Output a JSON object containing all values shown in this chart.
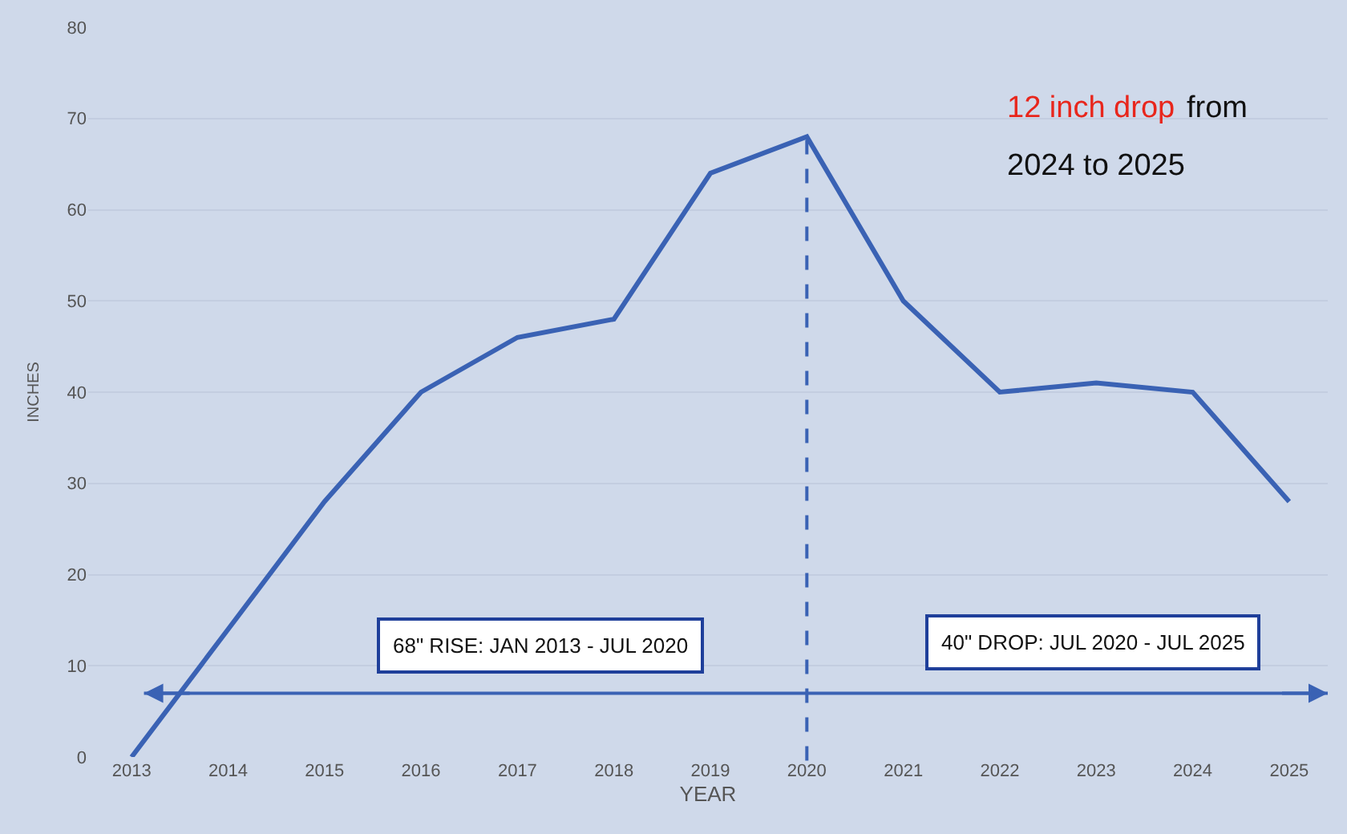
{
  "chart_data": {
    "type": "line",
    "xlabel": "YEAR",
    "ylabel": "INCHES",
    "categories": [
      "2013",
      "2014",
      "2015",
      "2016",
      "2017",
      "2018",
      "2019",
      "2020",
      "2021",
      "2022",
      "2023",
      "2024",
      "2025"
    ],
    "series": [
      {
        "color": "#3a62b4",
        "values": [
          0,
          14,
          28,
          40,
          46,
          48,
          64,
          68,
          50,
          40,
          41,
          40,
          28
        ]
      }
    ],
    "ylim": [
      0,
      80
    ],
    "yticks": [
      0,
      10,
      20,
      30,
      40,
      50,
      60,
      70,
      80
    ],
    "grid": "y",
    "legend": false,
    "marker": "none",
    "line_style": "solid",
    "ref_lines": [
      {
        "axis": "x",
        "value": "2020",
        "color": "#3a62b4",
        "line_style": "dashed"
      },
      {
        "axis": "y",
        "value": 7,
        "color": "#3a62b4",
        "line_style": "solid"
      }
    ],
    "annotations": [
      "68\" RISE: JAN 2013 - JUL 2020",
      "40\" DROP: JUL 2020 - JUL 2025",
      "12 inch drop",
      "from",
      "2024 to 2025"
    ]
  }
}
